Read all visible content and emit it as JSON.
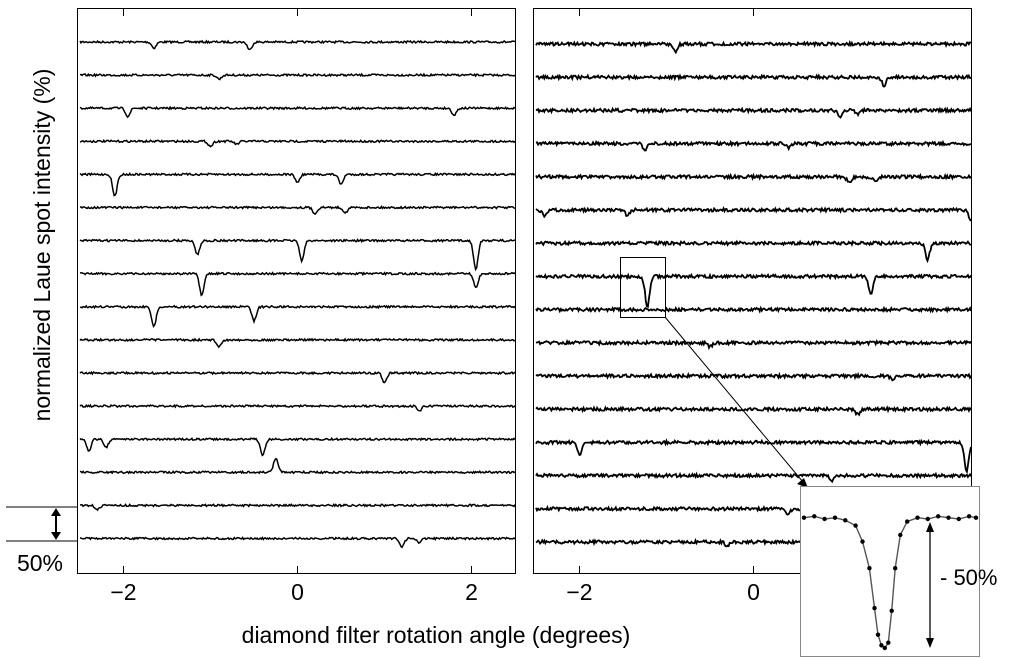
{
  "chart_data": {
    "type": "line",
    "ylabel": "normalized Laue spot intensity (%)",
    "xlabel": "diamond filter rotation angle (degrees)",
    "xlim": [
      -2.5,
      2.5
    ],
    "x_ticks": [
      -2,
      0,
      2
    ],
    "x_tick_labels": [
      "−2",
      "0",
      "2"
    ],
    "scale_bar_label": "50%",
    "inset_label": "- 50%",
    "grid": false,
    "legend": "none",
    "line_color": "#000000",
    "panels": [
      {
        "name": "left",
        "traces": [
          {
            "dips": [
              [
                -1.65,
                6
              ],
              [
                -0.55,
                8
              ]
            ]
          },
          {
            "dips": [
              [
                -0.9,
                4
              ]
            ]
          },
          {
            "dips": [
              [
                -1.95,
                8
              ],
              [
                1.8,
                7
              ]
            ]
          },
          {
            "dips": [
              [
                -1.0,
                5
              ],
              [
                -0.7,
                3
              ]
            ]
          },
          {
            "dips": [
              [
                -2.1,
                22
              ],
              [
                0.0,
                8
              ],
              [
                0.5,
                10
              ]
            ]
          },
          {
            "dips": [
              [
                0.2,
                6
              ],
              [
                0.55,
                5
              ]
            ]
          },
          {
            "dips": [
              [
                -1.15,
                14
              ],
              [
                0.05,
                20
              ],
              [
                2.05,
                28
              ]
            ]
          },
          {
            "dips": [
              [
                -1.1,
                22
              ],
              [
                2.05,
                14
              ]
            ]
          },
          {
            "dips": [
              [
                -1.65,
                20
              ],
              [
                -0.5,
                14
              ]
            ]
          },
          {
            "dips": [
              [
                -0.9,
                7
              ]
            ]
          },
          {
            "dips": [
              [
                1.0,
                10
              ]
            ]
          },
          {
            "dips": [
              [
                1.4,
                5
              ]
            ]
          },
          {
            "dips": [
              [
                -2.4,
                12
              ],
              [
                -2.2,
                8
              ],
              [
                -0.4,
                16
              ]
            ]
          },
          {
            "dips": [
              [
                -0.25,
                -14
              ]
            ]
          },
          {
            "dips": [
              [
                -2.3,
                4
              ]
            ]
          },
          {
            "dips": [
              [
                1.2,
                8
              ],
              [
                1.4,
                4
              ]
            ]
          }
        ]
      },
      {
        "name": "right",
        "traces": [
          {
            "dips": [
              [
                -0.9,
                8
              ]
            ]
          },
          {
            "dips": [
              [
                1.5,
                8
              ]
            ]
          },
          {
            "dips": [
              [
                1.0,
                6
              ],
              [
                1.2,
                4
              ]
            ]
          },
          {
            "dips": [
              [
                -1.25,
                6
              ],
              [
                0.4,
                4
              ]
            ]
          },
          {
            "dips": [
              [
                1.1,
                6
              ],
              [
                1.4,
                5
              ]
            ]
          },
          {
            "dips": [
              [
                -2.4,
                6
              ],
              [
                -1.45,
                5
              ],
              [
                2.5,
                10
              ]
            ]
          },
          {
            "dips": [
              [
                2.0,
                16
              ]
            ]
          },
          {
            "dips": [
              [
                -1.22,
                30
              ],
              [
                1.35,
                18
              ]
            ]
          },
          {
            "dips": []
          },
          {
            "dips": [
              [
                -0.5,
                4
              ]
            ]
          },
          {
            "dips": [
              [
                1.6,
                4
              ]
            ]
          },
          {
            "dips": [
              [
                1.2,
                5
              ]
            ]
          },
          {
            "dips": [
              [
                -2.0,
                12
              ],
              [
                2.45,
                28
              ]
            ]
          },
          {
            "dips": [
              [
                0.9,
                6
              ]
            ]
          },
          {
            "dips": [
              [
                0.4,
                5
              ]
            ]
          },
          {
            "dips": [
              [
                -0.3,
                4
              ]
            ]
          }
        ]
      }
    ],
    "zoom_box": {
      "panel": "right",
      "trace": 7,
      "x_range": [
        -1.45,
        -0.95
      ]
    },
    "inset_trace": {
      "x": [
        -1.45,
        -1.42,
        -1.39,
        -1.36,
        -1.33,
        -1.3,
        -1.28,
        -1.26,
        -1.245,
        -1.235,
        -1.225,
        -1.215,
        -1.205,
        -1.195,
        -1.185,
        -1.17,
        -1.15,
        -1.12,
        -1.09,
        -1.06,
        -1.03,
        -1.0,
        -0.97,
        -0.95
      ],
      "y": [
        98,
        99,
        97,
        98,
        96,
        92,
        80,
        60,
        30,
        10,
        2,
        0,
        4,
        28,
        60,
        85,
        95,
        98,
        97,
        99,
        98,
        97,
        99,
        98
      ]
    }
  }
}
